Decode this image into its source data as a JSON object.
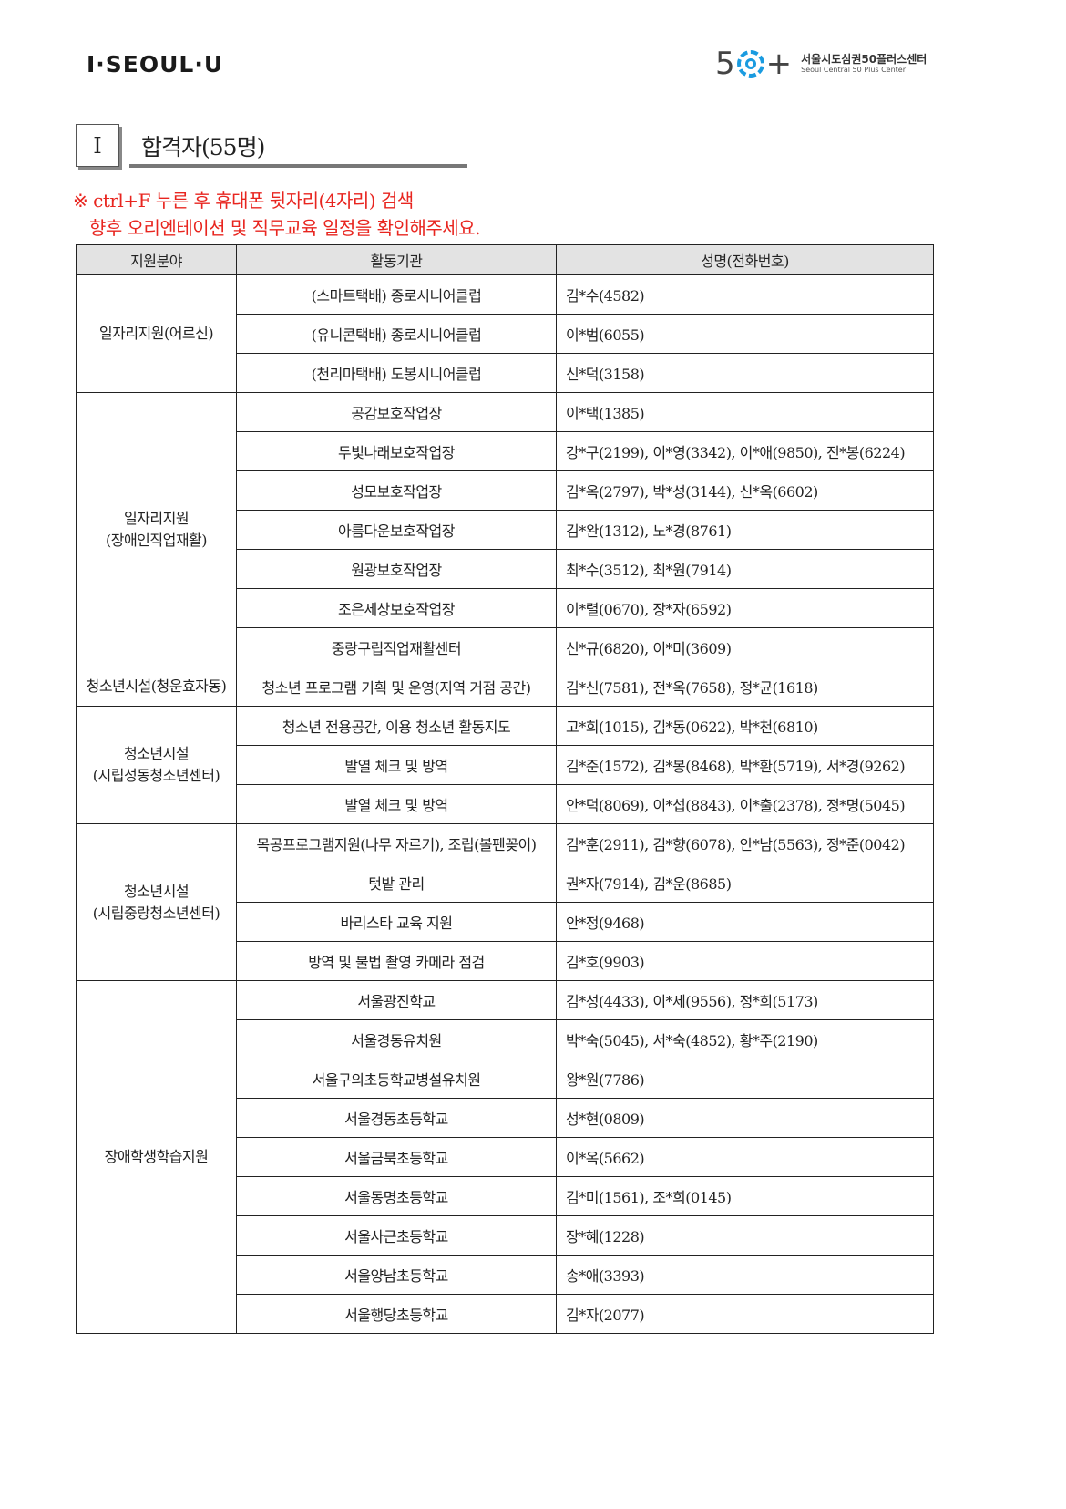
{
  "header": {
    "logo_left": "I·SEOUL·U",
    "logo_right_num": "50+",
    "logo_right_ko": "서울시도심권50플러스센터",
    "logo_right_en": "Seoul Central 50 Plus Center"
  },
  "section": {
    "number": "I",
    "title": "합격자(55명)"
  },
  "notes": [
    "※ ctrl+F 누른 후 휴대폰 뒷자리(4자리) 검색",
    "향후 오리엔테이션 및 직무교육 일정을 확인해주세요."
  ],
  "table": {
    "headers": [
      "지원분야",
      "활동기관",
      "성명(전화번호)"
    ],
    "groups": [
      {
        "category": [
          "일자리지원(어르신)"
        ],
        "rows": [
          [
            "(스마트택배) 종로시니어클럽",
            "김*수(4582)"
          ],
          [
            "(유니콘택배) 종로시니어클럽",
            "이*범(6055)"
          ],
          [
            "(천리마택배) 도봉시니어클럽",
            "신*덕(3158)"
          ]
        ]
      },
      {
        "category": [
          "일자리지원",
          "(장애인직업재활)"
        ],
        "rows": [
          [
            "공감보호작업장",
            "이*택(1385)"
          ],
          [
            "두빛나래보호작업장",
            "강*구(2199), 이*영(3342), 이*애(9850), 전*봉(6224)"
          ],
          [
            "성모보호작업장",
            "김*옥(2797), 박*성(3144), 신*옥(6602)"
          ],
          [
            "아름다운보호작업장",
            "김*완(1312), 노*경(8761)"
          ],
          [
            "원광보호작업장",
            "최*수(3512), 최*원(7914)"
          ],
          [
            "조은세상보호작업장",
            "이*렬(0670), 장*자(6592)"
          ],
          [
            "중랑구립직업재활센터",
            "신*규(6820), 이*미(3609)"
          ]
        ]
      },
      {
        "category": [
          "청소년시설(청운효자동)"
        ],
        "rows": [
          [
            "청소년 프로그램 기획 및 운영(지역 거점 공간)",
            "김*신(7581), 전*옥(7658), 정*균(1618)"
          ]
        ]
      },
      {
        "category": [
          "청소년시설",
          "(시립성동청소년센터)"
        ],
        "rows": [
          [
            "청소년 전용공간, 이용 청소년 활동지도",
            "고*희(1015), 김*동(0622), 박*천(6810)"
          ],
          [
            "발열 체크 및 방역",
            "김*준(1572), 김*봉(8468), 박*환(5719), 서*경(9262)"
          ],
          [
            "발열 체크 및 방역",
            "안*덕(8069), 이*섭(8843), 이*출(2378), 정*명(5045)"
          ]
        ]
      },
      {
        "category": [
          "청소년시설",
          "(시립중랑청소년센터)"
        ],
        "rows": [
          [
            "목공프로그램지원(나무 자르기), 조립(볼펜꽂이)",
            "김*훈(2911), 김*향(6078), 안*남(5563), 정*준(0042)"
          ],
          [
            "텃밭 관리",
            "권*자(7914), 김*운(8685)"
          ],
          [
            "바리스타 교육 지원",
            "안*정(9468)"
          ],
          [
            "방역 및 불법 촬영 카메라 점검",
            "김*호(9903)"
          ]
        ]
      },
      {
        "category": [
          "장애학생학습지원"
        ],
        "rows": [
          [
            "서울광진학교",
            "김*성(4433), 이*세(9556), 정*희(5173)"
          ],
          [
            "서울경동유치원",
            "박*숙(5045), 서*숙(4852), 황*주(2190)"
          ],
          [
            "서울구의초등학교병설유치원",
            "왕*원(7786)"
          ],
          [
            "서울경동초등학교",
            "성*현(0809)"
          ],
          [
            "서울금북초등학교",
            "이*옥(5662)"
          ],
          [
            "서울동명초등학교",
            "김*미(1561), 조*희(0145)"
          ],
          [
            "서울사근초등학교",
            "장*혜(1228)"
          ],
          [
            "서울양남초등학교",
            "송*애(3393)"
          ],
          [
            "서울행당초등학교",
            "김*자(2077)"
          ]
        ]
      }
    ]
  }
}
